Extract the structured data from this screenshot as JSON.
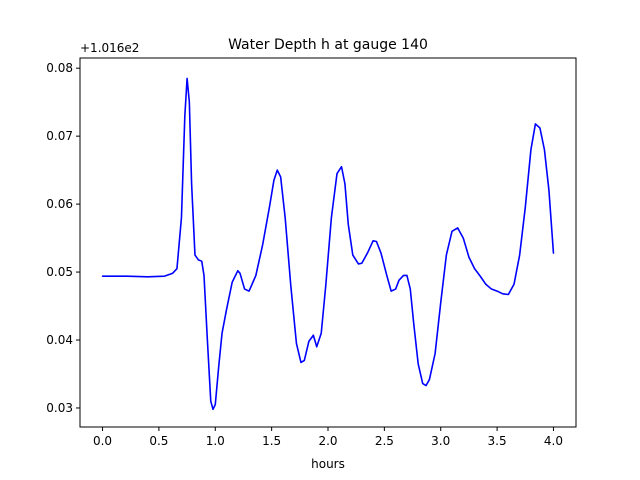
{
  "chart_data": {
    "type": "line",
    "title": "Water Depth h at gauge 140",
    "xlabel": "hours",
    "ylabel": "",
    "y_offset_label": "+1.016e2",
    "xlim": [
      -0.2,
      4.2
    ],
    "ylim": [
      0.0272,
      0.0815
    ],
    "xticks": [
      0.0,
      0.5,
      1.0,
      1.5,
      2.0,
      2.5,
      3.0,
      3.5,
      4.0
    ],
    "xtick_labels": [
      "0.0",
      "0.5",
      "1.0",
      "1.5",
      "2.0",
      "2.5",
      "3.0",
      "3.5",
      "4.0"
    ],
    "yticks": [
      0.03,
      0.04,
      0.05,
      0.06,
      0.07,
      0.08
    ],
    "ytick_labels": [
      "0.03",
      "0.04",
      "0.05",
      "0.06",
      "0.07",
      "0.08"
    ],
    "grid": false,
    "series": [
      {
        "color": "#0000ff",
        "x": [
          0.0,
          0.2,
          0.4,
          0.55,
          0.62,
          0.66,
          0.7,
          0.73,
          0.75,
          0.77,
          0.79,
          0.82,
          0.85,
          0.88,
          0.9,
          0.93,
          0.96,
          0.98,
          1.0,
          1.03,
          1.06,
          1.1,
          1.15,
          1.2,
          1.22,
          1.26,
          1.3,
          1.36,
          1.42,
          1.48,
          1.52,
          1.55,
          1.58,
          1.62,
          1.67,
          1.72,
          1.76,
          1.79,
          1.83,
          1.87,
          1.9,
          1.94,
          1.98,
          2.03,
          2.08,
          2.12,
          2.15,
          2.18,
          2.22,
          2.27,
          2.3,
          2.35,
          2.4,
          2.43,
          2.47,
          2.52,
          2.56,
          2.6,
          2.63,
          2.67,
          2.7,
          2.73,
          2.76,
          2.8,
          2.84,
          2.87,
          2.9,
          2.95,
          3.0,
          3.05,
          3.1,
          3.15,
          3.2,
          3.25,
          3.3,
          3.35,
          3.4,
          3.45,
          3.5,
          3.55,
          3.6,
          3.65,
          3.7,
          3.75,
          3.8,
          3.84,
          3.88,
          3.92,
          3.96,
          4.0
        ],
        "values": [
          0.0494,
          0.0494,
          0.0493,
          0.0494,
          0.0498,
          0.0505,
          0.058,
          0.073,
          0.0785,
          0.075,
          0.063,
          0.0525,
          0.0518,
          0.0516,
          0.0495,
          0.04,
          0.031,
          0.0298,
          0.0305,
          0.036,
          0.041,
          0.0445,
          0.0485,
          0.0502,
          0.0498,
          0.0475,
          0.0472,
          0.0495,
          0.054,
          0.0595,
          0.0635,
          0.065,
          0.064,
          0.058,
          0.048,
          0.0395,
          0.0367,
          0.037,
          0.0398,
          0.0407,
          0.039,
          0.041,
          0.048,
          0.058,
          0.0645,
          0.0655,
          0.063,
          0.057,
          0.0525,
          0.0512,
          0.0513,
          0.0528,
          0.0546,
          0.0545,
          0.0528,
          0.0496,
          0.0472,
          0.0475,
          0.0488,
          0.0495,
          0.0495,
          0.0475,
          0.0425,
          0.0365,
          0.0336,
          0.0333,
          0.0342,
          0.038,
          0.0455,
          0.0525,
          0.056,
          0.0565,
          0.055,
          0.0522,
          0.0505,
          0.0494,
          0.0482,
          0.0475,
          0.0472,
          0.0468,
          0.0467,
          0.0482,
          0.0525,
          0.0595,
          0.068,
          0.0718,
          0.0712,
          0.068,
          0.062,
          0.0528
        ]
      }
    ]
  }
}
